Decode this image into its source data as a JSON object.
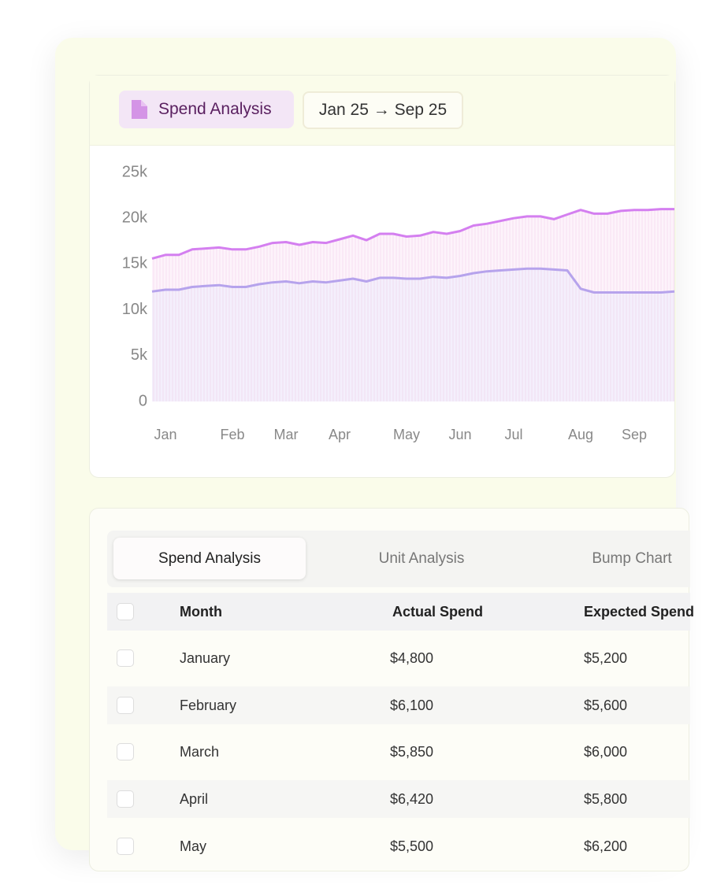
{
  "header": {
    "badge": "Spend Analysis",
    "range": "Jan 25 → Sep 25"
  },
  "chart_data": {
    "type": "area",
    "categories": [
      null,
      "Jan",
      null,
      null,
      null,
      null,
      "Feb",
      null,
      null,
      null,
      "Mar",
      null,
      null,
      null,
      "Apr",
      null,
      null,
      null,
      null,
      "May",
      null,
      null,
      null,
      "Jun",
      null,
      null,
      null,
      "Jul",
      null,
      null,
      null,
      null,
      "Aug",
      null,
      null,
      null,
      "Sep",
      null,
      null,
      null
    ],
    "series": [
      {
        "color": "#d47ff0",
        "values": [
          15600,
          16000,
          16000,
          16600,
          16700,
          16800,
          16600,
          16600,
          16900,
          17300,
          17400,
          17100,
          17400,
          17300,
          17700,
          18100,
          17600,
          18300,
          18300,
          18000,
          18100,
          18500,
          18300,
          18600,
          19200,
          19400,
          19700,
          20000,
          20200,
          20200,
          19900,
          20400,
          20900,
          20500,
          20500,
          20800,
          20900,
          20900,
          21000,
          21000
        ]
      },
      {
        "color": "#b6a3ec",
        "values": [
          12000,
          12200,
          12200,
          12500,
          12600,
          12700,
          12500,
          12500,
          12800,
          13000,
          13100,
          12900,
          13100,
          13000,
          13200,
          13400,
          13100,
          13500,
          13500,
          13400,
          13400,
          13600,
          13500,
          13700,
          14000,
          14200,
          14300,
          14400,
          14500,
          14500,
          14400,
          14300,
          12300,
          11900,
          11900,
          11900,
          11900,
          11900,
          11900,
          12000
        ]
      }
    ],
    "ylim": [
      0,
      25000
    ],
    "yticks": [
      0,
      {
        "value": 5000,
        "label": "5k"
      },
      {
        "value": 10000,
        "label": "10k"
      },
      {
        "value": 15000,
        "label": "15k"
      },
      {
        "value": 20000,
        "label": "20k"
      },
      {
        "value": 25000,
        "label": "25k"
      }
    ]
  },
  "tabs": [
    "Spend Analysis",
    "Unit Analysis",
    "Bump Chart"
  ],
  "table": {
    "columns": [
      "Month",
      "Actual Spend",
      "Expected Spend"
    ],
    "rows": [
      [
        "January",
        "$4,800",
        "$5,200"
      ],
      [
        "February",
        "$6,100",
        "$5,600"
      ],
      [
        "March",
        "$5,850",
        "$6,000"
      ],
      [
        "April",
        "$6,420",
        "$5,800"
      ],
      [
        "May",
        "$5,500",
        "$6,200"
      ]
    ]
  }
}
